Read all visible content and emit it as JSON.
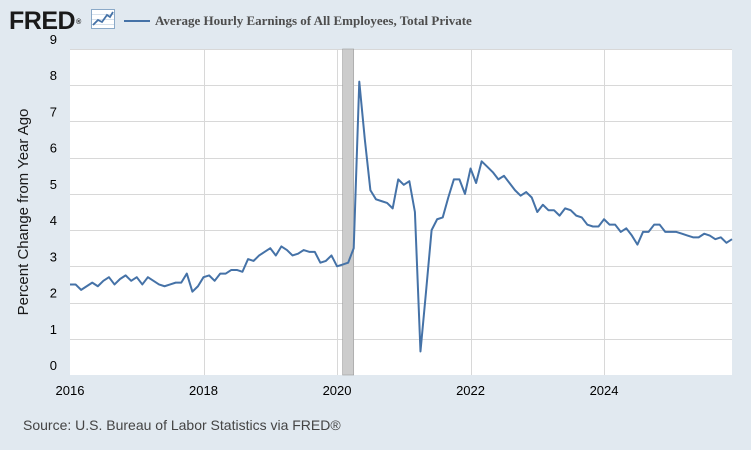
{
  "logo": {
    "text": "FRED",
    "mark": "®",
    "icon": "line-chart-icon"
  },
  "legend": {
    "label": "Average Hourly Earnings of All Employees, Total Private",
    "color": "#4572a7"
  },
  "source": "Source: U.S. Bureau of Labor Statistics via FRED®",
  "chart_data": {
    "type": "line",
    "title": "",
    "xlabel": "",
    "ylabel": "Percent Change from Year Ago",
    "xlim": [
      "2016-01",
      "2025-12"
    ],
    "ylim": [
      0,
      9
    ],
    "y_ticks": [
      "0",
      "1",
      "2",
      "3",
      "4",
      "5",
      "6",
      "7",
      "8",
      "9"
    ],
    "x_ticks": [
      "2016",
      "2018",
      "2020",
      "2022",
      "2024"
    ],
    "grid": true,
    "recession_band": [
      "2020-02",
      "2020-04"
    ],
    "series": [
      {
        "name": "Average Hourly Earnings of All Employees, Total Private",
        "color": "#4572a7",
        "points": [
          [
            "2016-01",
            2.5
          ],
          [
            "2016-02",
            2.5
          ],
          [
            "2016-03",
            2.35
          ],
          [
            "2016-04",
            2.45
          ],
          [
            "2016-05",
            2.55
          ],
          [
            "2016-06",
            2.45
          ],
          [
            "2016-07",
            2.6
          ],
          [
            "2016-08",
            2.7
          ],
          [
            "2016-09",
            2.5
          ],
          [
            "2016-10",
            2.65
          ],
          [
            "2016-11",
            2.75
          ],
          [
            "2016-12",
            2.6
          ],
          [
            "2017-01",
            2.7
          ],
          [
            "2017-02",
            2.5
          ],
          [
            "2017-03",
            2.7
          ],
          [
            "2017-04",
            2.6
          ],
          [
            "2017-05",
            2.5
          ],
          [
            "2017-06",
            2.45
          ],
          [
            "2017-07",
            2.5
          ],
          [
            "2017-08",
            2.55
          ],
          [
            "2017-09",
            2.55
          ],
          [
            "2017-10",
            2.8
          ],
          [
            "2017-11",
            2.3
          ],
          [
            "2017-12",
            2.45
          ],
          [
            "2018-01",
            2.7
          ],
          [
            "2018-02",
            2.75
          ],
          [
            "2018-03",
            2.6
          ],
          [
            "2018-04",
            2.8
          ],
          [
            "2018-05",
            2.8
          ],
          [
            "2018-06",
            2.9
          ],
          [
            "2018-07",
            2.9
          ],
          [
            "2018-08",
            2.85
          ],
          [
            "2018-09",
            3.2
          ],
          [
            "2018-10",
            3.15
          ],
          [
            "2018-11",
            3.3
          ],
          [
            "2018-12",
            3.4
          ],
          [
            "2019-01",
            3.5
          ],
          [
            "2019-02",
            3.3
          ],
          [
            "2019-03",
            3.55
          ],
          [
            "2019-04",
            3.45
          ],
          [
            "2019-05",
            3.3
          ],
          [
            "2019-06",
            3.35
          ],
          [
            "2019-07",
            3.45
          ],
          [
            "2019-08",
            3.4
          ],
          [
            "2019-09",
            3.4
          ],
          [
            "2019-10",
            3.1
          ],
          [
            "2019-11",
            3.15
          ],
          [
            "2019-12",
            3.3
          ],
          [
            "2020-01",
            3.0
          ],
          [
            "2020-02",
            3.05
          ],
          [
            "2020-03",
            3.1
          ],
          [
            "2020-04",
            3.5
          ],
          [
            "2020-05",
            8.1
          ],
          [
            "2020-06",
            6.5
          ],
          [
            "2020-07",
            5.1
          ],
          [
            "2020-08",
            4.85
          ],
          [
            "2020-09",
            4.8
          ],
          [
            "2020-10",
            4.75
          ],
          [
            "2020-11",
            4.6
          ],
          [
            "2020-12",
            5.4
          ],
          [
            "2021-01",
            5.25
          ],
          [
            "2021-02",
            5.35
          ],
          [
            "2021-03",
            4.5
          ],
          [
            "2021-04",
            0.65
          ],
          [
            "2021-05",
            2.3
          ],
          [
            "2021-06",
            4.0
          ],
          [
            "2021-07",
            4.3
          ],
          [
            "2021-08",
            4.35
          ],
          [
            "2021-09",
            4.9
          ],
          [
            "2021-10",
            5.4
          ],
          [
            "2021-11",
            5.4
          ],
          [
            "2021-12",
            5.0
          ],
          [
            "2022-01",
            5.7
          ],
          [
            "2022-02",
            5.3
          ],
          [
            "2022-03",
            5.9
          ],
          [
            "2022-04",
            5.75
          ],
          [
            "2022-05",
            5.6
          ],
          [
            "2022-06",
            5.4
          ],
          [
            "2022-07",
            5.5
          ],
          [
            "2022-08",
            5.3
          ],
          [
            "2022-09",
            5.1
          ],
          [
            "2022-10",
            4.95
          ],
          [
            "2022-11",
            5.05
          ],
          [
            "2022-12",
            4.9
          ],
          [
            "2023-01",
            4.5
          ],
          [
            "2023-02",
            4.7
          ],
          [
            "2023-03",
            4.55
          ],
          [
            "2023-04",
            4.55
          ],
          [
            "2023-05",
            4.4
          ],
          [
            "2023-06",
            4.6
          ],
          [
            "2023-07",
            4.55
          ],
          [
            "2023-08",
            4.4
          ],
          [
            "2023-09",
            4.35
          ],
          [
            "2023-10",
            4.15
          ],
          [
            "2023-11",
            4.1
          ],
          [
            "2023-12",
            4.1
          ],
          [
            "2024-01",
            4.3
          ],
          [
            "2024-02",
            4.15
          ],
          [
            "2024-03",
            4.15
          ],
          [
            "2024-04",
            3.95
          ],
          [
            "2024-05",
            4.05
          ],
          [
            "2024-06",
            3.85
          ],
          [
            "2024-07",
            3.6
          ],
          [
            "2024-08",
            3.95
          ],
          [
            "2024-09",
            3.95
          ],
          [
            "2024-10",
            4.15
          ],
          [
            "2024-11",
            4.15
          ],
          [
            "2024-12",
            3.95
          ],
          [
            "2025-01",
            3.95
          ],
          [
            "2025-02",
            3.95
          ],
          [
            "2025-03",
            3.9
          ],
          [
            "2025-04",
            3.85
          ],
          [
            "2025-05",
            3.8
          ],
          [
            "2025-06",
            3.8
          ],
          [
            "2025-07",
            3.9
          ],
          [
            "2025-08",
            3.85
          ],
          [
            "2025-09",
            3.75
          ],
          [
            "2025-10",
            3.8
          ],
          [
            "2025-11",
            3.65
          ],
          [
            "2025-12",
            3.75
          ]
        ]
      }
    ]
  }
}
